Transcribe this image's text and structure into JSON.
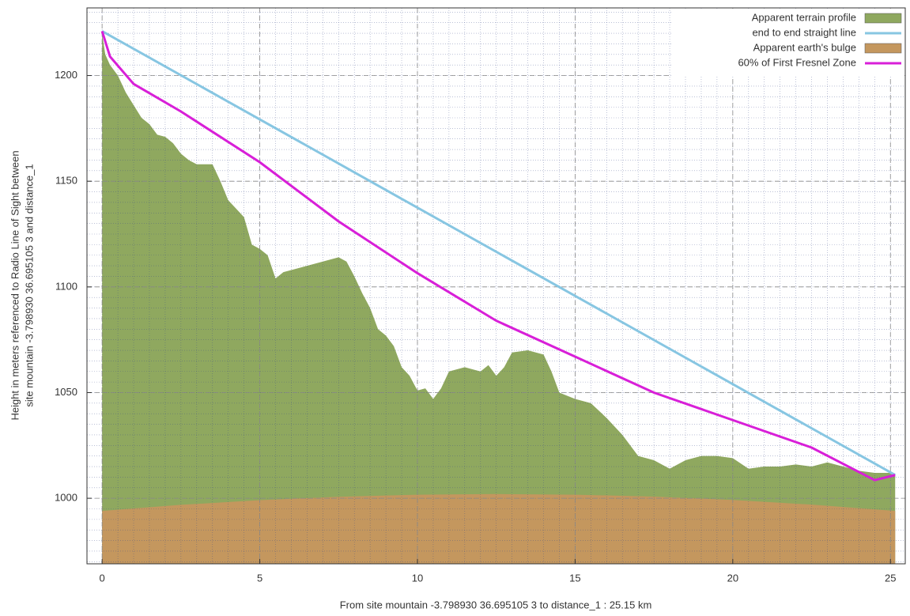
{
  "chart_data": {
    "type": "area",
    "xlabel": "From site mountain -3.798930 36.695105 3 to distance_1 : 25.15 km",
    "ylabel": [
      "Height in meters referenced to Radio Line of Sight between",
      "site mountain -3.798930 36.695105 3 and distance_1"
    ],
    "xlim": [
      -0.48,
      25.47
    ],
    "ylim": [
      969,
      1232
    ],
    "xticks": [
      0,
      5,
      10,
      15,
      20,
      25
    ],
    "yticks": [
      1000,
      1050,
      1100,
      1150,
      1200
    ],
    "grid": true,
    "minor_ticks": {
      "x": 10,
      "y": 10
    },
    "legend": "top-right",
    "series": [
      {
        "name": "Apparent terrain profile",
        "type": "area",
        "color": "#8fa85f",
        "x": [
          0,
          0.1,
          0.25,
          0.5,
          0.75,
          1,
          1.25,
          1.5,
          1.75,
          2,
          2.25,
          2.5,
          2.75,
          3,
          3.25,
          3.5,
          3.75,
          4,
          4.25,
          4.5,
          4.75,
          5,
          5.25,
          5.5,
          5.75,
          6,
          6.5,
          7,
          7.5,
          7.75,
          8,
          8.25,
          8.5,
          8.75,
          9,
          9.25,
          9.5,
          9.75,
          10,
          10.25,
          10.5,
          10.75,
          11,
          11.5,
          12,
          12.25,
          12.5,
          12.75,
          13,
          13.5,
          14,
          14.25,
          14.5,
          15,
          15.5,
          16,
          16.5,
          17,
          17.5,
          18,
          18.5,
          19,
          19.5,
          20,
          20.5,
          21,
          21.5,
          22,
          22.5,
          23,
          23.5,
          24,
          24.5,
          25,
          25.15
        ],
        "values": [
          1220,
          1210,
          1205,
          1200,
          1192,
          1186,
          1180,
          1177,
          1172,
          1171,
          1168,
          1163,
          1160,
          1158,
          1158,
          1158,
          1150,
          1141,
          1137,
          1133,
          1120,
          1118,
          1115,
          1104,
          1107,
          1108,
          1110,
          1112,
          1114,
          1112,
          1105,
          1097,
          1090,
          1080,
          1077,
          1072,
          1062,
          1058,
          1051,
          1052,
          1047,
          1052,
          1060,
          1062,
          1060,
          1063,
          1058,
          1062,
          1069,
          1070,
          1068,
          1060,
          1050,
          1047,
          1045,
          1038,
          1030,
          1020,
          1018,
          1014,
          1018,
          1020,
          1020,
          1019,
          1014,
          1015,
          1015,
          1016,
          1015,
          1017,
          1015,
          1013,
          1012,
          1012,
          1011
        ]
      },
      {
        "name": "end to end straight line",
        "type": "line",
        "color": "#87c6e2",
        "x": [
          0,
          25.15
        ],
        "values": [
          1221,
          1011
        ]
      },
      {
        "name": "Apparent earth's bulge",
        "type": "area",
        "color": "#c4975e",
        "x": [
          0,
          2.5,
          5,
          7.5,
          10,
          12.5,
          15,
          17.5,
          20,
          22.5,
          25.15
        ],
        "values": [
          994,
          996.9,
          999.1,
          1000.7,
          1001.7,
          1002,
          1001.7,
          1000.8,
          999.2,
          997,
          994
        ]
      },
      {
        "name": "60% of First Fresnel Zone",
        "type": "line",
        "color": "#d81fd8",
        "x": [
          0,
          0.25,
          1,
          2.5,
          5,
          7.5,
          10,
          12.5,
          15,
          17.5,
          20,
          22.5,
          24.5,
          25.15
        ],
        "values": [
          1221,
          1209,
          1196,
          1183,
          1159,
          1131,
          1106.5,
          1084,
          1067,
          1050,
          1037,
          1024,
          1008.6,
          1011
        ]
      }
    ]
  }
}
